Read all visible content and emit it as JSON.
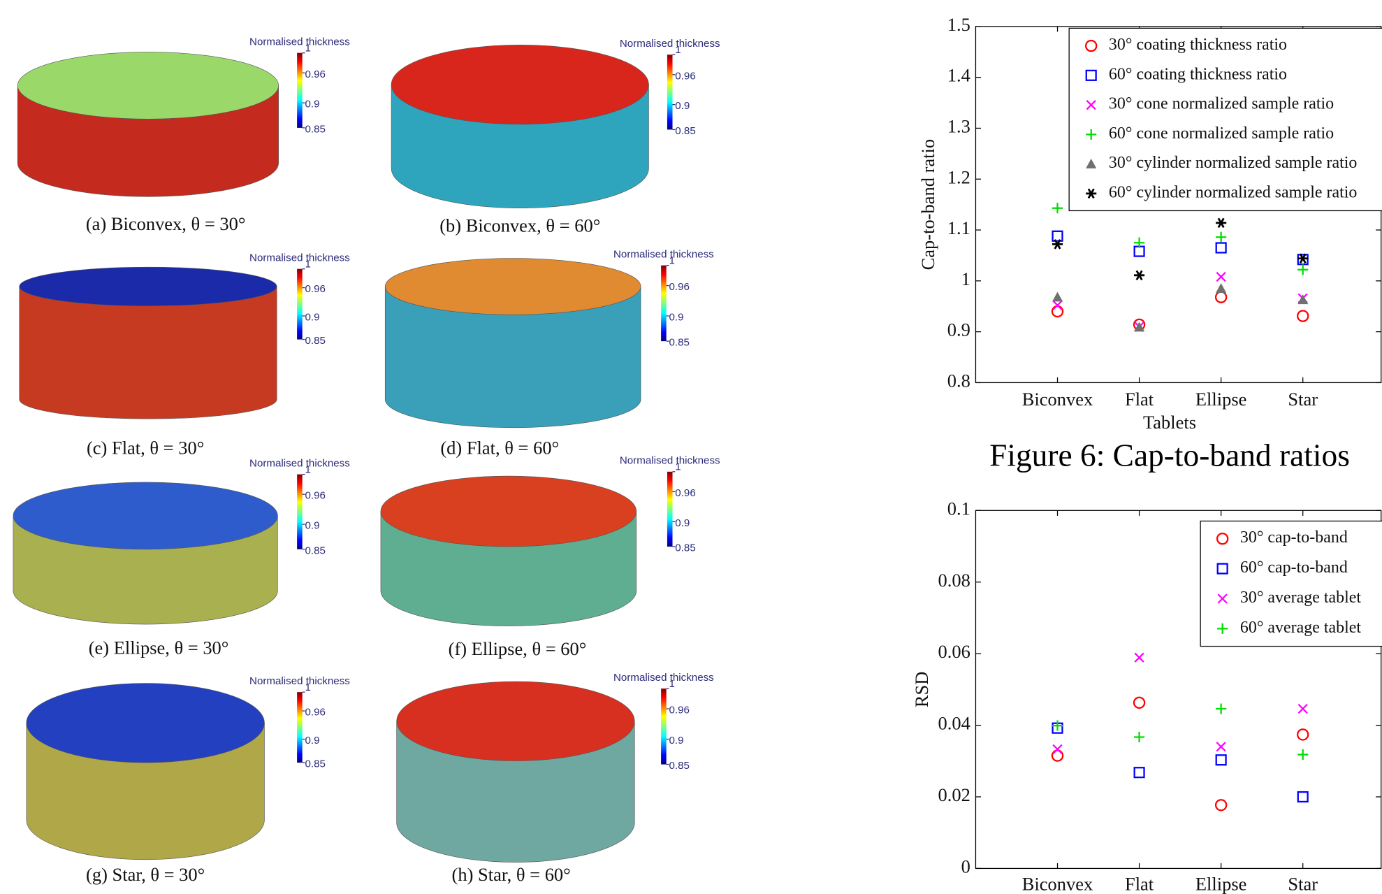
{
  "colorbar": {
    "title": "Normalised thickness",
    "range": [
      0.85,
      1
    ],
    "ticks": [
      0.85,
      0.9,
      0.96,
      1
    ]
  },
  "panels": [
    {
      "caption": "(a) Biconvex, θ = 30°"
    },
    {
      "caption": "(b) Biconvex, θ = 60°"
    },
    {
      "caption": "(c) Flat, θ = 30°"
    },
    {
      "caption": "(d) Flat, θ = 60°"
    },
    {
      "caption": "(e) Ellipse, θ = 30°"
    },
    {
      "caption": "(f) Ellipse, θ = 60°"
    },
    {
      "caption": "(g) Star, θ = 30°"
    },
    {
      "caption": "(h) Star, θ = 60°"
    }
  ],
  "figure_caption": "Figure 6: Cap-to-band ratios",
  "chart_data": [
    {
      "type": "scatter",
      "y_label": "Cap-to-band ratio",
      "x_label": "Tablets",
      "categories": [
        "Biconvex",
        "Flat",
        "Ellipse",
        "Star"
      ],
      "ylim": [
        0.8,
        1.5
      ],
      "yticks": [
        0.8,
        0.9,
        1,
        1.1,
        1.2,
        1.3,
        1.4,
        1.5
      ],
      "grid": false,
      "legend": "upper right",
      "series": [
        {
          "name": "30° coating thickness ratio",
          "color": "#ff0000",
          "marker": "o",
          "values": [
            0.94,
            0.914,
            0.968,
            0.931
          ]
        },
        {
          "name": "60° coating thickness ratio",
          "color": "#0000ff",
          "marker": "s",
          "values": [
            1.088,
            1.058,
            1.065,
            1.042
          ]
        },
        {
          "name": "30° cone normalized sample ratio",
          "color": "#ff00ff",
          "marker": "x",
          "values": [
            0.952,
            0.91,
            1.008,
            0.966
          ]
        },
        {
          "name": "60° cone normalized sample ratio",
          "color": "#00dd00",
          "marker": "+",
          "values": [
            1.143,
            1.075,
            1.086,
            1.022
          ]
        },
        {
          "name": "30° cylinder normalized sample ratio",
          "color": "#707070",
          "marker": "^",
          "values": [
            0.968,
            0.909,
            0.985,
            0.963
          ]
        },
        {
          "name": "60° cylinder normalized sample ratio",
          "color": "#000000",
          "marker": "*",
          "values": [
            1.072,
            1.011,
            1.114,
            1.044
          ]
        }
      ]
    },
    {
      "type": "scatter",
      "y_label": "RSD",
      "categories": [
        "Biconvex",
        "Flat",
        "Ellipse",
        "Star"
      ],
      "ylim": [
        0,
        0.1
      ],
      "yticks": [
        0,
        0.02,
        0.04,
        0.06,
        0.08,
        0.1
      ],
      "grid": false,
      "legend": "upper right",
      "series": [
        {
          "name": "30° cap-to-band",
          "color": "#ff0000",
          "marker": "o",
          "values": [
            0.0315,
            0.0463,
            0.0177,
            0.0374
          ]
        },
        {
          "name": "60° cap-to-band",
          "color": "#0000ff",
          "marker": "s",
          "values": [
            0.0392,
            0.0268,
            0.0303,
            0.02
          ]
        },
        {
          "name": "30° average tablet",
          "color": "#ff00ff",
          "marker": "x",
          "values": [
            0.0333,
            0.0589,
            0.034,
            0.0446
          ]
        },
        {
          "name": "60° average tablet",
          "color": "#00dd00",
          "marker": "+",
          "values": [
            0.0399,
            0.0367,
            0.0446,
            0.0318
          ]
        }
      ]
    }
  ]
}
